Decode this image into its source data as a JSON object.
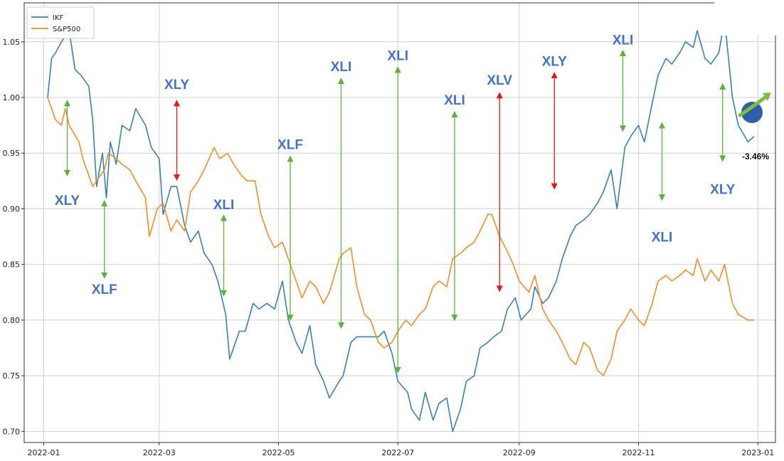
{
  "chart_data": {
    "type": "line",
    "title": "",
    "xlabel": "",
    "ylabel": "",
    "xlim": [
      "2021-12-22",
      "2023-01-10"
    ],
    "ylim": [
      0.69,
      1.085
    ],
    "grid": true,
    "legend_position": "top-left",
    "x_tick_labels": [
      "2022-01",
      "2022-03",
      "2022-05",
      "2022-07",
      "2022-09",
      "2022-11",
      "2023-01"
    ],
    "y_tick_labels": [
      "0.70",
      "0.75",
      "0.80",
      "0.85",
      "0.90",
      "0.95",
      "1.00",
      "1.05"
    ],
    "series": [
      {
        "name": "IKF",
        "color": "#3b7fb5",
        "points": [
          [
            "2022-01-03",
            1.0
          ],
          [
            "2022-01-05",
            1.035
          ],
          [
            "2022-01-07",
            1.04
          ],
          [
            "2022-01-10",
            1.05
          ],
          [
            "2022-01-12",
            1.055
          ],
          [
            "2022-01-14",
            1.06
          ],
          [
            "2022-01-17",
            1.025
          ],
          [
            "2022-01-20",
            1.02
          ],
          [
            "2022-01-24",
            1.01
          ],
          [
            "2022-01-26",
            0.98
          ],
          [
            "2022-01-28",
            0.92
          ],
          [
            "2022-01-31",
            0.95
          ],
          [
            "2022-02-02",
            0.91
          ],
          [
            "2022-02-04",
            0.96
          ],
          [
            "2022-02-07",
            0.94
          ],
          [
            "2022-02-10",
            0.975
          ],
          [
            "2022-02-14",
            0.97
          ],
          [
            "2022-02-17",
            0.99
          ],
          [
            "2022-02-22",
            0.975
          ],
          [
            "2022-02-25",
            0.955
          ],
          [
            "2022-03-01",
            0.945
          ],
          [
            "2022-03-03",
            0.895
          ],
          [
            "2022-03-07",
            0.92
          ],
          [
            "2022-03-10",
            0.92
          ],
          [
            "2022-03-14",
            0.885
          ],
          [
            "2022-03-17",
            0.87
          ],
          [
            "2022-03-21",
            0.88
          ],
          [
            "2022-03-24",
            0.86
          ],
          [
            "2022-03-28",
            0.85
          ],
          [
            "2022-03-31",
            0.835
          ],
          [
            "2022-04-04",
            0.805
          ],
          [
            "2022-04-06",
            0.765
          ],
          [
            "2022-04-11",
            0.79
          ],
          [
            "2022-04-14",
            0.79
          ],
          [
            "2022-04-18",
            0.815
          ],
          [
            "2022-04-21",
            0.81
          ],
          [
            "2022-04-25",
            0.815
          ],
          [
            "2022-04-29",
            0.81
          ],
          [
            "2022-05-03",
            0.835
          ],
          [
            "2022-05-06",
            0.8
          ],
          [
            "2022-05-10",
            0.78
          ],
          [
            "2022-05-13",
            0.77
          ],
          [
            "2022-05-17",
            0.795
          ],
          [
            "2022-05-20",
            0.76
          ],
          [
            "2022-05-24",
            0.745
          ],
          [
            "2022-05-27",
            0.73
          ],
          [
            "2022-06-01",
            0.745
          ],
          [
            "2022-06-03",
            0.75
          ],
          [
            "2022-06-07",
            0.78
          ],
          [
            "2022-06-10",
            0.785
          ],
          [
            "2022-06-14",
            0.785
          ],
          [
            "2022-06-17",
            0.785
          ],
          [
            "2022-06-21",
            0.785
          ],
          [
            "2022-06-24",
            0.79
          ],
          [
            "2022-06-28",
            0.77
          ],
          [
            "2022-07-01",
            0.745
          ],
          [
            "2022-07-06",
            0.735
          ],
          [
            "2022-07-08",
            0.72
          ],
          [
            "2022-07-12",
            0.71
          ],
          [
            "2022-07-15",
            0.735
          ],
          [
            "2022-07-19",
            0.71
          ],
          [
            "2022-07-22",
            0.725
          ],
          [
            "2022-07-26",
            0.73
          ],
          [
            "2022-07-29",
            0.7
          ],
          [
            "2022-08-02",
            0.72
          ],
          [
            "2022-08-05",
            0.745
          ],
          [
            "2022-08-09",
            0.75
          ],
          [
            "2022-08-12",
            0.775
          ],
          [
            "2022-08-16",
            0.78
          ],
          [
            "2022-08-19",
            0.785
          ],
          [
            "2022-08-23",
            0.79
          ],
          [
            "2022-08-26",
            0.81
          ],
          [
            "2022-08-30",
            0.82
          ],
          [
            "2022-09-02",
            0.8
          ],
          [
            "2022-09-07",
            0.81
          ],
          [
            "2022-09-09",
            0.83
          ],
          [
            "2022-09-13",
            0.815
          ],
          [
            "2022-09-16",
            0.82
          ],
          [
            "2022-09-20",
            0.835
          ],
          [
            "2022-09-23",
            0.855
          ],
          [
            "2022-09-27",
            0.875
          ],
          [
            "2022-09-30",
            0.885
          ],
          [
            "2022-10-04",
            0.89
          ],
          [
            "2022-10-07",
            0.895
          ],
          [
            "2022-10-11",
            0.905
          ],
          [
            "2022-10-14",
            0.915
          ],
          [
            "2022-10-18",
            0.935
          ],
          [
            "2022-10-21",
            0.9
          ],
          [
            "2022-10-25",
            0.955
          ],
          [
            "2022-10-28",
            0.965
          ],
          [
            "2022-11-01",
            0.975
          ],
          [
            "2022-11-04",
            0.96
          ],
          [
            "2022-11-08",
            0.995
          ],
          [
            "2022-11-11",
            1.02
          ],
          [
            "2022-11-15",
            1.035
          ],
          [
            "2022-11-18",
            1.03
          ],
          [
            "2022-11-22",
            1.04
          ],
          [
            "2022-11-25",
            1.05
          ],
          [
            "2022-11-29",
            1.045
          ],
          [
            "2022-12-01",
            1.06
          ],
          [
            "2022-12-05",
            1.035
          ],
          [
            "2022-12-08",
            1.03
          ],
          [
            "2022-12-12",
            1.04
          ],
          [
            "2022-12-15",
            1.07
          ],
          [
            "2022-12-19",
            1.0
          ],
          [
            "2022-12-22",
            0.975
          ],
          [
            "2022-12-27",
            0.96
          ],
          [
            "2022-12-30",
            0.965
          ]
        ]
      },
      {
        "name": "S&P500",
        "color": "#f28e2b",
        "points": [
          [
            "2022-01-03",
            1.0
          ],
          [
            "2022-01-05",
            0.99
          ],
          [
            "2022-01-07",
            0.98
          ],
          [
            "2022-01-10",
            0.975
          ],
          [
            "2022-01-12",
            0.99
          ],
          [
            "2022-01-14",
            0.975
          ],
          [
            "2022-01-19",
            0.96
          ],
          [
            "2022-01-21",
            0.945
          ],
          [
            "2022-01-24",
            0.93
          ],
          [
            "2022-01-26",
            0.92
          ],
          [
            "2022-01-28",
            0.925
          ],
          [
            "2022-02-01",
            0.935
          ],
          [
            "2022-02-03",
            0.95
          ],
          [
            "2022-02-07",
            0.945
          ],
          [
            "2022-02-10",
            0.94
          ],
          [
            "2022-02-14",
            0.935
          ],
          [
            "2022-02-17",
            0.925
          ],
          [
            "2022-02-22",
            0.91
          ],
          [
            "2022-02-24",
            0.875
          ],
          [
            "2022-02-28",
            0.9
          ],
          [
            "2022-03-03",
            0.905
          ],
          [
            "2022-03-07",
            0.88
          ],
          [
            "2022-03-10",
            0.89
          ],
          [
            "2022-03-14",
            0.88
          ],
          [
            "2022-03-17",
            0.915
          ],
          [
            "2022-03-21",
            0.925
          ],
          [
            "2022-03-24",
            0.935
          ],
          [
            "2022-03-29",
            0.955
          ],
          [
            "2022-04-01",
            0.945
          ],
          [
            "2022-04-05",
            0.95
          ],
          [
            "2022-04-08",
            0.94
          ],
          [
            "2022-04-12",
            0.93
          ],
          [
            "2022-04-15",
            0.925
          ],
          [
            "2022-04-19",
            0.925
          ],
          [
            "2022-04-22",
            0.895
          ],
          [
            "2022-04-26",
            0.875
          ],
          [
            "2022-04-29",
            0.865
          ],
          [
            "2022-05-03",
            0.87
          ],
          [
            "2022-05-06",
            0.855
          ],
          [
            "2022-05-10",
            0.835
          ],
          [
            "2022-05-13",
            0.82
          ],
          [
            "2022-05-17",
            0.835
          ],
          [
            "2022-05-20",
            0.83
          ],
          [
            "2022-05-24",
            0.815
          ],
          [
            "2022-05-27",
            0.825
          ],
          [
            "2022-06-01",
            0.855
          ],
          [
            "2022-06-03",
            0.86
          ],
          [
            "2022-06-07",
            0.865
          ],
          [
            "2022-06-10",
            0.83
          ],
          [
            "2022-06-14",
            0.805
          ],
          [
            "2022-06-17",
            0.8
          ],
          [
            "2022-06-21",
            0.78
          ],
          [
            "2022-06-24",
            0.775
          ],
          [
            "2022-06-28",
            0.78
          ],
          [
            "2022-07-01",
            0.79
          ],
          [
            "2022-07-05",
            0.8
          ],
          [
            "2022-07-08",
            0.795
          ],
          [
            "2022-07-12",
            0.805
          ],
          [
            "2022-07-15",
            0.81
          ],
          [
            "2022-07-19",
            0.83
          ],
          [
            "2022-07-22",
            0.835
          ],
          [
            "2022-07-26",
            0.83
          ],
          [
            "2022-07-29",
            0.855
          ],
          [
            "2022-08-02",
            0.86
          ],
          [
            "2022-08-05",
            0.865
          ],
          [
            "2022-08-09",
            0.87
          ],
          [
            "2022-08-12",
            0.88
          ],
          [
            "2022-08-16",
            0.895
          ],
          [
            "2022-08-18",
            0.895
          ],
          [
            "2022-08-22",
            0.875
          ],
          [
            "2022-08-25",
            0.865
          ],
          [
            "2022-08-29",
            0.85
          ],
          [
            "2022-09-01",
            0.835
          ],
          [
            "2022-09-06",
            0.825
          ],
          [
            "2022-09-09",
            0.84
          ],
          [
            "2022-09-13",
            0.81
          ],
          [
            "2022-09-16",
            0.8
          ],
          [
            "2022-09-20",
            0.79
          ],
          [
            "2022-09-23",
            0.78
          ],
          [
            "2022-09-27",
            0.765
          ],
          [
            "2022-09-30",
            0.76
          ],
          [
            "2022-10-04",
            0.78
          ],
          [
            "2022-10-07",
            0.775
          ],
          [
            "2022-10-11",
            0.755
          ],
          [
            "2022-10-14",
            0.75
          ],
          [
            "2022-10-18",
            0.765
          ],
          [
            "2022-10-21",
            0.79
          ],
          [
            "2022-10-25",
            0.8
          ],
          [
            "2022-10-28",
            0.81
          ],
          [
            "2022-11-01",
            0.8
          ],
          [
            "2022-11-04",
            0.795
          ],
          [
            "2022-11-08",
            0.815
          ],
          [
            "2022-11-11",
            0.835
          ],
          [
            "2022-11-15",
            0.84
          ],
          [
            "2022-11-18",
            0.835
          ],
          [
            "2022-11-22",
            0.84
          ],
          [
            "2022-11-25",
            0.845
          ],
          [
            "2022-11-29",
            0.84
          ],
          [
            "2022-12-01",
            0.855
          ],
          [
            "2022-12-05",
            0.835
          ],
          [
            "2022-12-08",
            0.845
          ],
          [
            "2022-12-12",
            0.835
          ],
          [
            "2022-12-15",
            0.85
          ],
          [
            "2022-12-19",
            0.815
          ],
          [
            "2022-12-22",
            0.805
          ],
          [
            "2022-12-27",
            0.8
          ],
          [
            "2022-12-30",
            0.8
          ]
        ]
      }
    ],
    "annotations": [
      {
        "label": "XLY",
        "x": "2022-01-13",
        "y_start": 0.995,
        "y_end": 0.932,
        "color": "#5fb043",
        "label_x": "2022-01-13",
        "label_y": 0.908
      },
      {
        "label": "XLF",
        "x": "2022-02-01",
        "y_start": 0.905,
        "y_end": 0.84,
        "color": "#5fb043",
        "label_x": "2022-02-01",
        "label_y": 0.828
      },
      {
        "label": "XLY",
        "x": "2022-03-10",
        "y_start": 0.995,
        "y_end": 0.928,
        "color": "#e31a1c",
        "label_x": "2022-03-10",
        "label_y": 1.012
      },
      {
        "label": "XLI",
        "x": "2022-04-03",
        "y_start": 0.892,
        "y_end": 0.824,
        "color": "#5fb043",
        "label_x": "2022-04-03",
        "label_y": 0.904
      },
      {
        "label": "XLF",
        "x": "2022-05-07",
        "y_start": 0.945,
        "y_end": 0.802,
        "color": "#5fb043",
        "label_x": "2022-05-07",
        "label_y": 0.958
      },
      {
        "label": "XLI",
        "x": "2022-06-02",
        "y_start": 1.015,
        "y_end": 0.795,
        "color": "#5fb043",
        "label_x": "2022-06-02",
        "label_y": 1.028
      },
      {
        "label": "XLI",
        "x": "2022-07-01",
        "y_start": 1.025,
        "y_end": 0.755,
        "color": "#5fb043",
        "label_x": "2022-07-01",
        "label_y": 1.038
      },
      {
        "label": "XLI",
        "x": "2022-07-30",
        "y_start": 0.985,
        "y_end": 0.802,
        "color": "#5fb043",
        "label_x": "2022-07-30",
        "label_y": 0.998
      },
      {
        "label": "XLV",
        "x": "2022-08-22",
        "y_start": 1.002,
        "y_end": 0.828,
        "color": "#e31a1c",
        "label_x": "2022-08-22",
        "label_y": 1.016
      },
      {
        "label": "XLY",
        "x": "2022-09-19",
        "y_start": 1.02,
        "y_end": 0.92,
        "color": "#e31a1c",
        "label_x": "2022-09-19",
        "label_y": 1.033
      },
      {
        "label": "XLI",
        "x": "2022-10-24",
        "y_start": 1.04,
        "y_end": 0.972,
        "color": "#5fb043",
        "label_x": "2022-10-24",
        "label_y": 1.052
      },
      {
        "label": "XLI",
        "x": "2022-11-13",
        "y_start": 0.975,
        "y_end": 0.91,
        "color": "#5fb043",
        "label_x": "2022-11-13",
        "label_y": 0.875
      },
      {
        "label": "XLY",
        "x": "2022-12-14",
        "y_start": 1.01,
        "y_end": 0.945,
        "color": "#5fb043",
        "label_x": "2022-12-14",
        "label_y": 0.918
      }
    ],
    "performance_label": "-3.46%"
  }
}
